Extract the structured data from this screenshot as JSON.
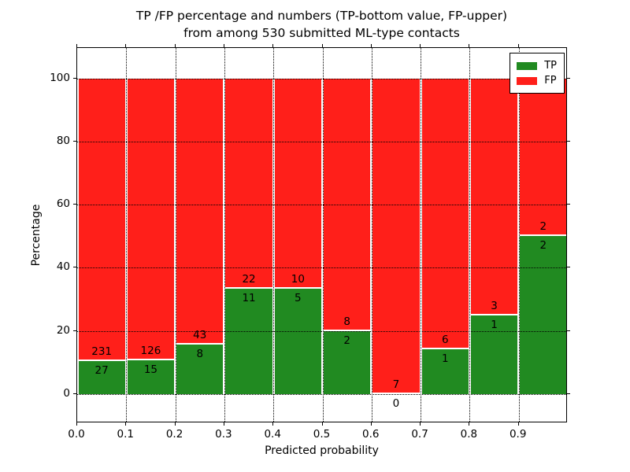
{
  "chart_data": {
    "type": "bar",
    "subtype": "stacked-100-percent-with-count-annotations",
    "title": "TP /FP percentage and numbers (TP-bottom value, FP-upper)\nfrom among 530 submitted ML-type contacts",
    "xlabel": "Predicted probability",
    "ylabel": "Percentage",
    "total_submitted_contacts": 530,
    "xlim": [
      0.0,
      1.0
    ],
    "ylim": [
      -9.2,
      109.6
    ],
    "bin_width": 0.1,
    "bin_starts": [
      0.0,
      0.1,
      0.2,
      0.3,
      0.4,
      0.5,
      0.6,
      0.7,
      0.8,
      0.9
    ],
    "x_tick_labels": [
      "0.0",
      "0.1",
      "0.2",
      "0.3",
      "0.4",
      "0.5",
      "0.6",
      "0.7",
      "0.8",
      "0.9"
    ],
    "x_tick_values": [
      0.0,
      0.1,
      0.2,
      0.3,
      0.4,
      0.5,
      0.6,
      0.7,
      0.8,
      0.9
    ],
    "y_tick_labels": [
      "0",
      "20",
      "40",
      "60",
      "80",
      "100"
    ],
    "y_tick_values": [
      0,
      20,
      40,
      60,
      80,
      100
    ],
    "grid": true,
    "annotation_rule": "TP count printed below the TP/FP boundary, FP count printed above it",
    "series": [
      {
        "name": "TP",
        "color": "#218a21",
        "counts": [
          27,
          15,
          8,
          11,
          5,
          2,
          0,
          1,
          1,
          2
        ]
      },
      {
        "name": "FP",
        "color": "#ff1f1a",
        "counts": [
          231,
          126,
          43,
          22,
          10,
          8,
          7,
          6,
          3,
          2
        ]
      }
    ],
    "tp_percentages": [
      10.47,
      10.64,
      15.69,
      33.33,
      33.33,
      20.0,
      0.0,
      14.29,
      25.0,
      50.0
    ],
    "legend": {
      "position": "upper right"
    }
  }
}
